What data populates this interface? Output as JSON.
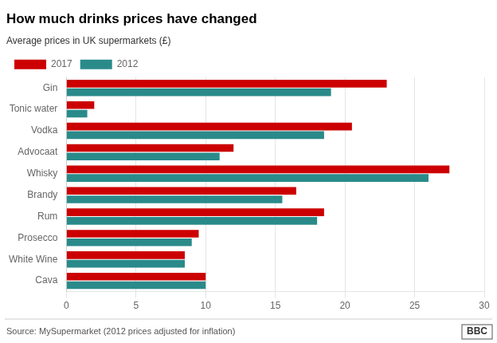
{
  "chart_data": {
    "type": "bar",
    "orientation": "horizontal",
    "title": "How much drinks prices have changed",
    "subtitle": "Average prices in UK supermarkets (£)",
    "annotations": [
      "Source: MySupermarket (2012 prices adjusted for inflation)",
      "BBC"
    ],
    "categories": [
      "Cava",
      "White Wine",
      "Prosecco",
      "Rum",
      "Brandy",
      "Whisky",
      "Advocaat",
      "Vodka",
      "Tonic water",
      "Gin"
    ],
    "series": [
      {
        "name": "2017",
        "color": "#cc0000",
        "values": [
          10,
          8.5,
          9.5,
          18.5,
          16.5,
          27.5,
          12,
          20.5,
          2,
          23
        ]
      },
      {
        "name": "2012",
        "color": "#2a8a8a",
        "values": [
          10,
          8.5,
          9,
          18,
          15.5,
          26,
          11,
          18.5,
          1.5,
          19
        ]
      }
    ],
    "xlim": [
      0,
      30
    ],
    "xticks": [
      0,
      5,
      10,
      15,
      20,
      25,
      30
    ],
    "grid": true,
    "legend": "top"
  }
}
